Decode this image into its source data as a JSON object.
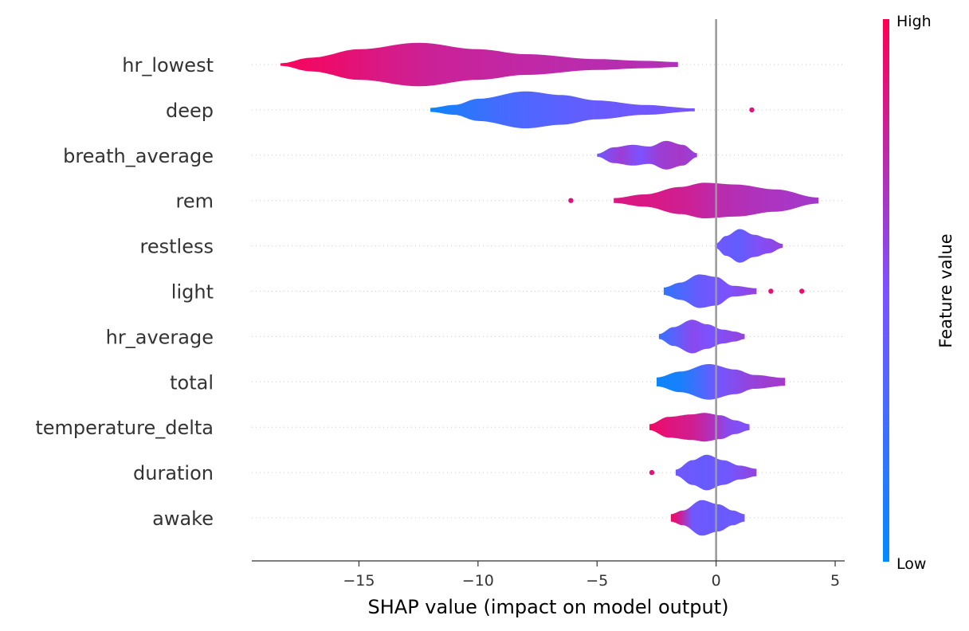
{
  "chart_data": {
    "type": "violin",
    "title": "",
    "xlabel": "SHAP value (impact on model output)",
    "ylabel": "",
    "xlim": [
      -19.5,
      5.4
    ],
    "xticks": [
      {
        "value": -15,
        "label": "−15"
      },
      {
        "value": -10,
        "label": "−10"
      },
      {
        "value": -5,
        "label": "−5"
      },
      {
        "value": 0,
        "label": "0"
      },
      {
        "value": 5,
        "label": "5"
      }
    ],
    "zero_line": 0,
    "colorbar": {
      "title": "Feature value",
      "high_label": "High",
      "low_label": "Low",
      "low_color": "#008bfb",
      "high_color": "#ff0052"
    },
    "features": [
      {
        "name": "hr_lowest",
        "min": -18.3,
        "max": -1.6,
        "density": [
          [
            -18.3,
            0.05
          ],
          [
            -17,
            0.28
          ],
          [
            -15,
            0.62
          ],
          [
            -12.5,
            0.88
          ],
          [
            -10,
            0.62
          ],
          [
            -8,
            0.42
          ],
          [
            -5,
            0.22
          ],
          [
            -3,
            0.15
          ],
          [
            -1.6,
            0.1
          ]
        ],
        "colors": [
          [
            -18.3,
            0.97
          ],
          [
            -16,
            0.92
          ],
          [
            -14,
            0.85
          ],
          [
            -12,
            0.8
          ],
          [
            -9,
            0.77
          ],
          [
            -6,
            0.74
          ],
          [
            -3,
            0.72
          ],
          [
            -1.6,
            0.7
          ]
        ],
        "outliers": []
      },
      {
        "name": "deep",
        "min": -12,
        "max": -0.9,
        "density": [
          [
            -12,
            0.08
          ],
          [
            -11,
            0.2
          ],
          [
            -10,
            0.45
          ],
          [
            -8,
            0.75
          ],
          [
            -6.5,
            0.6
          ],
          [
            -5,
            0.38
          ],
          [
            -3,
            0.2
          ],
          [
            -0.9,
            0.06
          ]
        ],
        "colors": [
          [
            -12,
            0.05
          ],
          [
            -10.5,
            0.18
          ],
          [
            -9,
            0.28
          ],
          [
            -7,
            0.35
          ],
          [
            -5,
            0.42
          ],
          [
            -2,
            0.47
          ],
          [
            -0.9,
            0.48
          ]
        ],
        "outliers": [
          {
            "x": 1.5,
            "c": 0.88
          }
        ]
      },
      {
        "name": "breath_average",
        "min": -5,
        "max": -0.8,
        "density": [
          [
            -5,
            0.06
          ],
          [
            -4.3,
            0.32
          ],
          [
            -3.5,
            0.42
          ],
          [
            -2.8,
            0.35
          ],
          [
            -2.1,
            0.58
          ],
          [
            -1.4,
            0.42
          ],
          [
            -0.8,
            0.08
          ]
        ],
        "colors": [
          [
            -5,
            0.45
          ],
          [
            -4,
            0.62
          ],
          [
            -3.2,
            0.5
          ],
          [
            -2.4,
            0.62
          ],
          [
            -1.5,
            0.66
          ],
          [
            -0.8,
            0.6
          ]
        ],
        "outliers": []
      },
      {
        "name": "rem",
        "min": -4.3,
        "max": 4.3,
        "density": [
          [
            -4.3,
            0.1
          ],
          [
            -3,
            0.25
          ],
          [
            -1.5,
            0.55
          ],
          [
            -0.5,
            0.72
          ],
          [
            0.8,
            0.65
          ],
          [
            2.5,
            0.45
          ],
          [
            4.3,
            0.12
          ]
        ],
        "colors": [
          [
            -4.3,
            0.86
          ],
          [
            -2.5,
            0.85
          ],
          [
            -1,
            0.8
          ],
          [
            0,
            0.74
          ],
          [
            1.5,
            0.7
          ],
          [
            3,
            0.67
          ],
          [
            4.3,
            0.65
          ]
        ],
        "outliers": [
          {
            "x": -6.1,
            "c": 0.9
          }
        ]
      },
      {
        "name": "restless",
        "min": 0,
        "max": 2.8,
        "density": [
          [
            0,
            0.1
          ],
          [
            0.4,
            0.4
          ],
          [
            1,
            0.68
          ],
          [
            1.6,
            0.45
          ],
          [
            2.2,
            0.3
          ],
          [
            2.8,
            0.08
          ]
        ],
        "colors": [
          [
            0,
            0.45
          ],
          [
            1,
            0.4
          ],
          [
            1.8,
            0.52
          ],
          [
            2.8,
            0.6
          ]
        ],
        "outliers": []
      },
      {
        "name": "light",
        "min": -2.2,
        "max": 1.7,
        "density": [
          [
            -2.2,
            0.15
          ],
          [
            -1.5,
            0.35
          ],
          [
            -0.7,
            0.68
          ],
          [
            0,
            0.58
          ],
          [
            0.7,
            0.22
          ],
          [
            1.7,
            0.12
          ]
        ],
        "colors": [
          [
            -2.2,
            0.2
          ],
          [
            -1.5,
            0.3
          ],
          [
            -0.7,
            0.42
          ],
          [
            0.5,
            0.5
          ],
          [
            1.7,
            0.6
          ]
        ],
        "outliers": [
          {
            "x": 2.3,
            "c": 0.9
          },
          {
            "x": 3.6,
            "c": 0.92
          }
        ]
      },
      {
        "name": "hr_average",
        "min": -2.4,
        "max": 1.2,
        "density": [
          [
            -2.4,
            0.1
          ],
          [
            -1.8,
            0.38
          ],
          [
            -1,
            0.68
          ],
          [
            -0.4,
            0.5
          ],
          [
            0.3,
            0.28
          ],
          [
            0.8,
            0.2
          ],
          [
            1.2,
            0.1
          ]
        ],
        "colors": [
          [
            -2.4,
            0.25
          ],
          [
            -1.8,
            0.35
          ],
          [
            -1,
            0.55
          ],
          [
            -0.2,
            0.5
          ],
          [
            1.2,
            0.6
          ]
        ],
        "outliers": []
      },
      {
        "name": "total",
        "min": -2.5,
        "max": 2.9,
        "density": [
          [
            -2.5,
            0.18
          ],
          [
            -1.5,
            0.42
          ],
          [
            -0.3,
            0.72
          ],
          [
            0.8,
            0.5
          ],
          [
            1.6,
            0.28
          ],
          [
            2.9,
            0.16
          ]
        ],
        "colors": [
          [
            -2.5,
            0.05
          ],
          [
            -1.5,
            0.1
          ],
          [
            -0.8,
            0.25
          ],
          [
            0,
            0.45
          ],
          [
            1.5,
            0.6
          ],
          [
            2.9,
            0.66
          ]
        ],
        "outliers": []
      },
      {
        "name": "temperature_delta",
        "min": -2.8,
        "max": 1.4,
        "density": [
          [
            -2.8,
            0.12
          ],
          [
            -2,
            0.42
          ],
          [
            -1,
            0.52
          ],
          [
            -0.5,
            0.58
          ],
          [
            0.2,
            0.48
          ],
          [
            0.8,
            0.28
          ],
          [
            1.4,
            0.12
          ]
        ],
        "colors": [
          [
            -2.8,
            0.95
          ],
          [
            -2,
            0.88
          ],
          [
            -1,
            0.82
          ],
          [
            -0.2,
            0.7
          ],
          [
            0.5,
            0.55
          ],
          [
            1.4,
            0.5
          ]
        ],
        "outliers": []
      },
      {
        "name": "duration",
        "min": -1.7,
        "max": 1.7,
        "density": [
          [
            -1.7,
            0.12
          ],
          [
            -1,
            0.5
          ],
          [
            -0.4,
            0.72
          ],
          [
            0.3,
            0.5
          ],
          [
            1,
            0.28
          ],
          [
            1.7,
            0.15
          ]
        ],
        "colors": [
          [
            -1.7,
            0.45
          ],
          [
            -0.5,
            0.42
          ],
          [
            0.5,
            0.45
          ],
          [
            1.7,
            0.6
          ]
        ],
        "outliers": [
          {
            "x": -2.7,
            "c": 0.88
          }
        ]
      },
      {
        "name": "awake",
        "min": -1.9,
        "max": 1.2,
        "density": [
          [
            -1.9,
            0.15
          ],
          [
            -1.4,
            0.3
          ],
          [
            -0.6,
            0.72
          ],
          [
            0.1,
            0.55
          ],
          [
            0.7,
            0.3
          ],
          [
            1.2,
            0.15
          ]
        ],
        "colors": [
          [
            -1.9,
            0.95
          ],
          [
            -1.5,
            0.8
          ],
          [
            -1,
            0.45
          ],
          [
            0,
            0.42
          ],
          [
            1.2,
            0.45
          ]
        ],
        "outliers": []
      }
    ]
  }
}
